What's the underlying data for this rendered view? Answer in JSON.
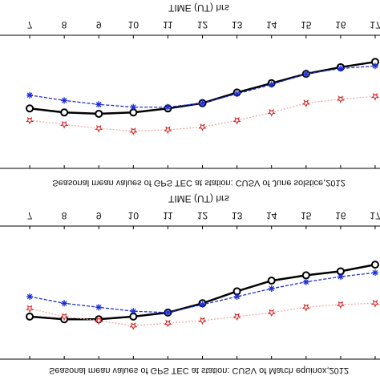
{
  "chart_data": [
    {
      "type": "line",
      "title": "Seasonal mean values of GPS TEC at station: CUSV of March equinox,2012",
      "xlabel": "TIME (UT) hrs",
      "x": [
        7,
        8,
        9,
        10,
        11,
        12,
        13,
        14,
        15,
        16,
        17
      ],
      "xlim": [
        6.14,
        17.14
      ],
      "xticks": [
        7,
        8,
        9,
        10,
        11,
        12,
        13,
        14,
        15,
        16,
        17
      ],
      "ylim": [
        0,
        100
      ],
      "series": [
        {
          "color": "#000000",
          "marker": "circle",
          "values": [
            68,
            70,
            70,
            68,
            65,
            58,
            49,
            41,
            37,
            34,
            29
          ]
        },
        {
          "color": "#1f2fd6",
          "marker": "asterisk",
          "values": [
            53,
            58,
            61,
            64,
            65,
            59,
            53,
            47,
            42,
            38,
            35
          ]
        },
        {
          "color": "#d42020",
          "marker": "star",
          "values": [
            62,
            68,
            71,
            75,
            73,
            71,
            68,
            65,
            61,
            59,
            58
          ]
        }
      ]
    },
    {
      "type": "line",
      "title": "Seasonal mean values of GPS TEC at station: CUSV of June solstice,2012",
      "xlabel": "TIME (UT) hrs",
      "x": [
        7,
        8,
        9,
        10,
        11,
        12,
        13,
        14,
        15,
        16,
        17
      ],
      "xlim": [
        6.14,
        17.14
      ],
      "xticks": [
        7,
        8,
        9,
        10,
        11,
        12,
        13,
        14,
        15,
        16,
        17
      ],
      "ylim": [
        0,
        100
      ],
      "series": [
        {
          "color": "#000000",
          "marker": "circle",
          "values": [
            55,
            58,
            59,
            58,
            55,
            51,
            43,
            36,
            29,
            24,
            20
          ]
        },
        {
          "color": "#1f2fd6",
          "marker": "asterisk",
          "values": [
            45,
            49,
            52,
            54,
            54,
            51,
            44,
            37,
            29,
            25,
            23
          ]
        },
        {
          "color": "#d42020",
          "marker": "star",
          "values": [
            64,
            67,
            70,
            72,
            71,
            69,
            64,
            58,
            51,
            48,
            46
          ]
        }
      ]
    }
  ]
}
